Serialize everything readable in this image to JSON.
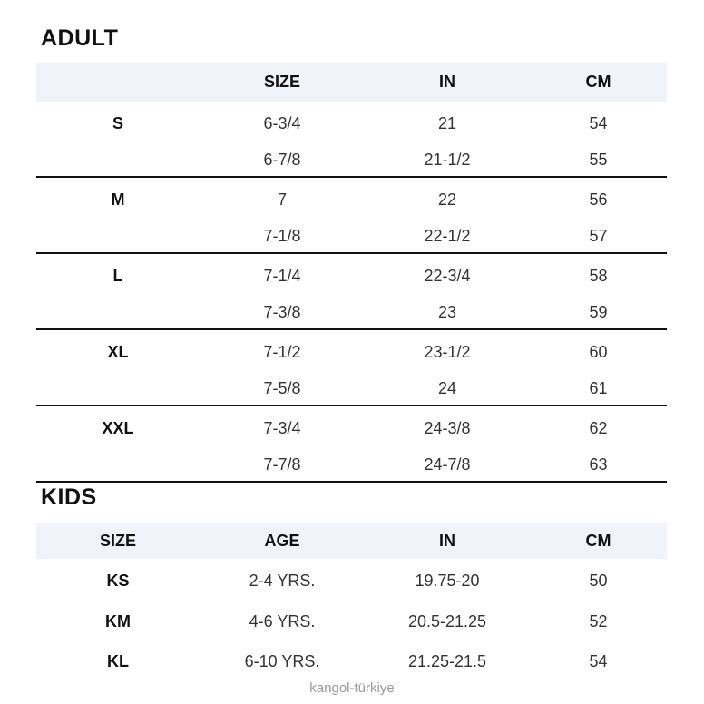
{
  "adult": {
    "title": "ADULT",
    "headers": [
      "",
      "SIZE",
      "IN",
      "CM"
    ],
    "groups": [
      {
        "label": "S",
        "rows": [
          [
            "6-3/4",
            "21",
            "54"
          ],
          [
            "6-7/8",
            "21-1/2",
            "55"
          ]
        ]
      },
      {
        "label": "M",
        "rows": [
          [
            "7",
            "22",
            "56"
          ],
          [
            "7-1/8",
            "22-1/2",
            "57"
          ]
        ]
      },
      {
        "label": "L",
        "rows": [
          [
            "7-1/4",
            "22-3/4",
            "58"
          ],
          [
            "7-3/8",
            "23",
            "59"
          ]
        ]
      },
      {
        "label": "XL",
        "rows": [
          [
            "7-1/2",
            "23-1/2",
            "60"
          ],
          [
            "7-5/8",
            "24",
            "61"
          ]
        ]
      },
      {
        "label": "XXL",
        "rows": [
          [
            "7-3/4",
            "24-3/8",
            "62"
          ],
          [
            "7-7/8",
            "24-7/8",
            "63"
          ]
        ]
      }
    ]
  },
  "kids": {
    "title": "KIDS",
    "headers": [
      "SIZE",
      "AGE",
      "IN",
      "CM"
    ],
    "rows": [
      [
        "KS",
        "2-4 YRS.",
        "19.75-20",
        "50"
      ],
      [
        "KM",
        "4-6 YRS.",
        "20.5-21.25",
        "52"
      ],
      [
        "KL",
        "6-10 YRS.",
        "21.25-21.5",
        "54"
      ]
    ]
  },
  "watermark": "kangol-türkiye",
  "colors": {
    "header_band": "#f0f3f8",
    "divider": "#111111",
    "watermark": "#999999"
  }
}
